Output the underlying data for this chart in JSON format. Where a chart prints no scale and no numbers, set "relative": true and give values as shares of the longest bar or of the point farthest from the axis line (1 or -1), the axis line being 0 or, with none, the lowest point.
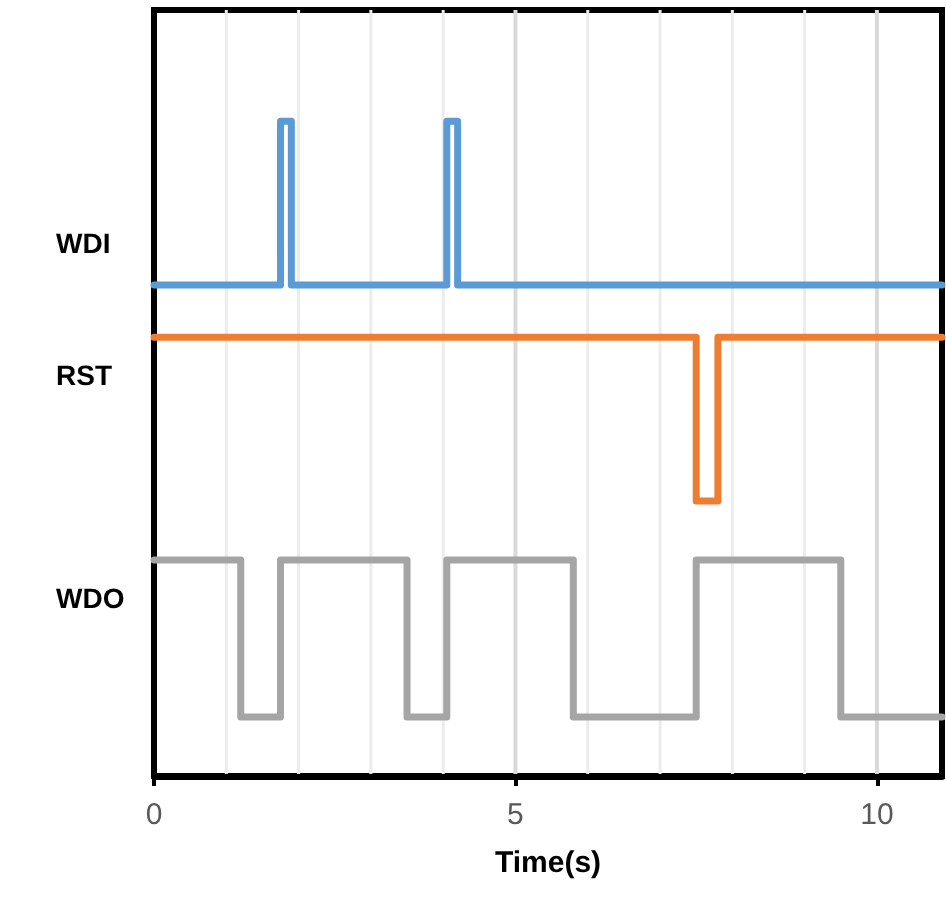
{
  "chart_data": {
    "type": "step",
    "relative": true,
    "xlabel": "Time(s)",
    "xlim": [
      0,
      10.9
    ],
    "xticks": [
      0,
      {
        "value": 1,
        "label": null
      },
      {
        "value": 2,
        "label": null
      },
      {
        "value": 3,
        "label": null
      },
      {
        "value": 4,
        "label": null
      },
      5,
      {
        "value": 6,
        "label": null
      },
      {
        "value": 7,
        "label": null
      },
      {
        "value": 8,
        "label": null
      },
      {
        "value": 9,
        "label": null
      },
      10
    ],
    "grid": "x",
    "legend": false,
    "line_style": "solid",
    "series": [
      {
        "name": "WDI",
        "color": "#5b9bd5",
        "x": [
          0,
          1.75,
          1.9,
          4.05,
          4.2,
          10.9
        ],
        "values": [
          0.75,
          1,
          0.75,
          1,
          0.75,
          0.75
        ]
      },
      {
        "name": "RST",
        "color": "#ed7d31",
        "x": [
          0,
          7.5,
          7.8,
          10.9
        ],
        "values": [
          0.67,
          0.42,
          0.67,
          0.67
        ]
      },
      {
        "name": "WDO",
        "color": "#a5a5a5",
        "x": [
          0,
          1.2,
          1.75,
          3.5,
          4.05,
          5.8,
          7.5,
          9.5,
          10.9
        ],
        "values": [
          0.33,
          0.09,
          0.33,
          0.09,
          0.33,
          0.09,
          0.33,
          0.09,
          0.09
        ]
      }
    ]
  }
}
